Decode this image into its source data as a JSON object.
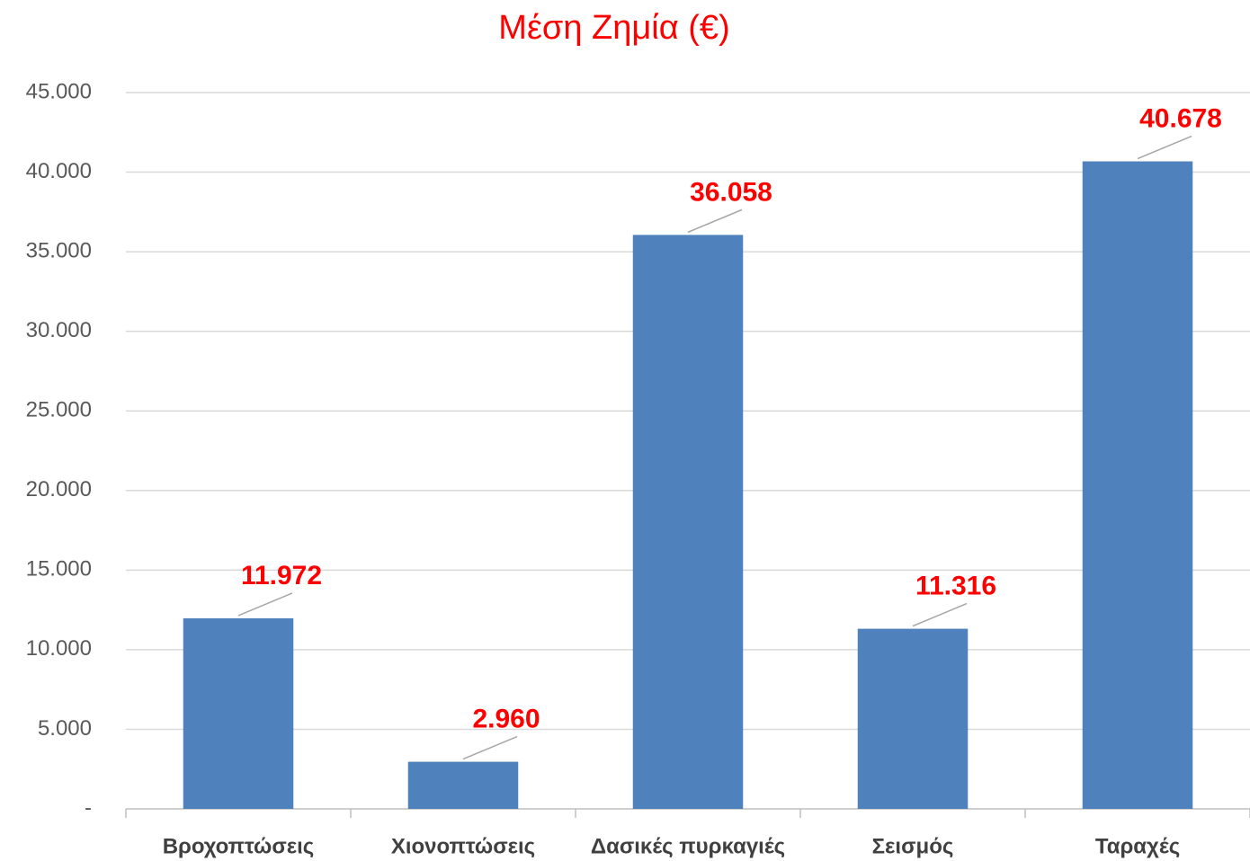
{
  "chart_data": {
    "type": "bar",
    "title": "Μέση Ζημία (€)",
    "categories": [
      "Βροχοπτώσεις",
      "Χιονοπτώσεις",
      "Δασικές πυρκαγιές",
      "Σεισμός",
      "Ταραχές"
    ],
    "values": [
      11972,
      2960,
      36058,
      11316,
      40678
    ],
    "value_labels": [
      "11.972",
      "2.960",
      "36.058",
      "11.316",
      "40.678"
    ],
    "color": "#4f81bd",
    "ylim": [
      0,
      45000
    ],
    "yticks": [
      {
        "value": 0,
        "label": "-"
      },
      {
        "value": 5000,
        "label": "5.000"
      },
      {
        "value": 10000,
        "label": "10.000"
      },
      {
        "value": 15000,
        "label": "15.000"
      },
      {
        "value": 20000,
        "label": "20.000"
      },
      {
        "value": 25000,
        "label": "25.000"
      },
      {
        "value": 30000,
        "label": "30.000"
      },
      {
        "value": 35000,
        "label": "35.000"
      },
      {
        "value": 40000,
        "label": "40.000"
      },
      {
        "value": 45000,
        "label": "45.000"
      }
    ],
    "grid": true
  }
}
